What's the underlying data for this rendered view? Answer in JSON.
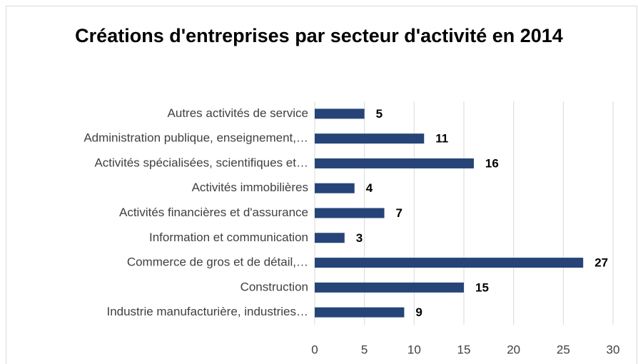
{
  "chart_data": {
    "type": "bar",
    "orientation": "horizontal",
    "title": "Créations d'entreprises par secteur d'activité en 2014",
    "categories": [
      "Autres activités de service",
      "Administration publique, enseignement,…",
      "Activités spécialisées, scientifiques et…",
      "Activités immobilières",
      "Activités financières et d'assurance",
      "Information et communication",
      "Commerce de gros et de détail,…",
      "Construction",
      "Industrie manufacturière, industries…"
    ],
    "values": [
      5,
      11,
      16,
      4,
      7,
      3,
      27,
      15,
      9
    ],
    "color": "#264478",
    "xlim": [
      0,
      30
    ],
    "xticks": [
      0,
      5,
      10,
      15,
      20,
      25,
      30
    ],
    "grid": true
  }
}
